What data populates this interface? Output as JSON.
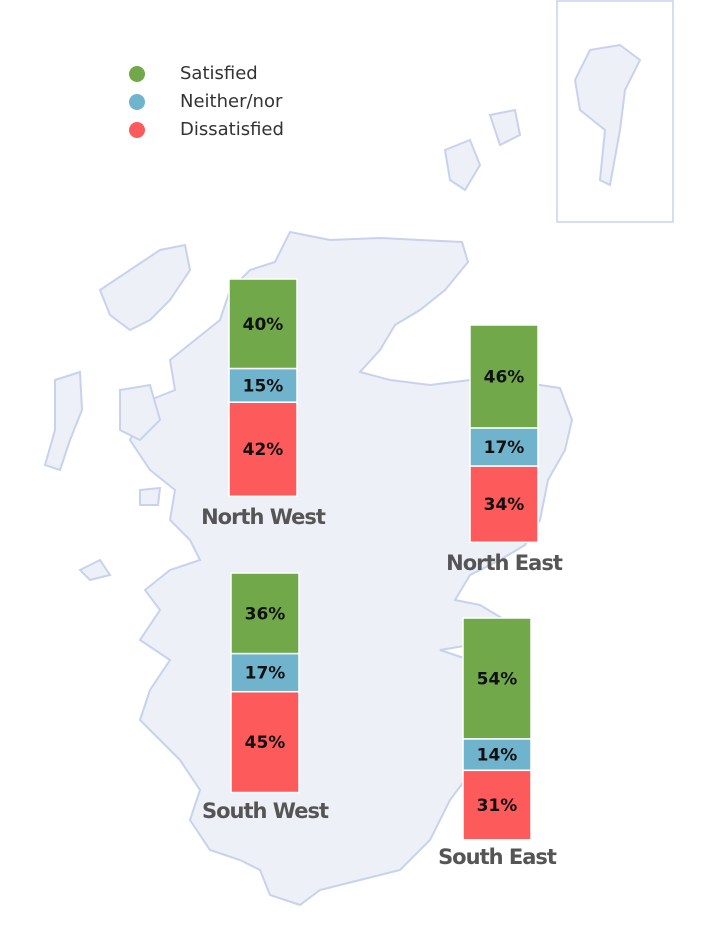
{
  "legend": [
    {
      "name": "Satisfied",
      "color": "#70a84a"
    },
    {
      "name": "Neither/nor",
      "color": "#6fb3cc"
    },
    {
      "name": "Dissatisfied",
      "color": "#fd5a5c"
    }
  ],
  "regions": [
    {
      "name": "North West",
      "values": [
        40,
        15,
        42
      ],
      "value_labels": [
        "40%",
        "15%",
        "42%"
      ]
    },
    {
      "name": "North East",
      "values": [
        46,
        17,
        34
      ],
      "value_labels": [
        "46%",
        "17%",
        "34%"
      ]
    },
    {
      "name": "South West",
      "values": [
        36,
        17,
        45
      ],
      "value_labels": [
        "36%",
        "17%",
        "45%"
      ]
    },
    {
      "name": "South East",
      "values": [
        54,
        14,
        31
      ],
      "value_labels": [
        "54%",
        "14%",
        "31%"
      ]
    }
  ]
}
